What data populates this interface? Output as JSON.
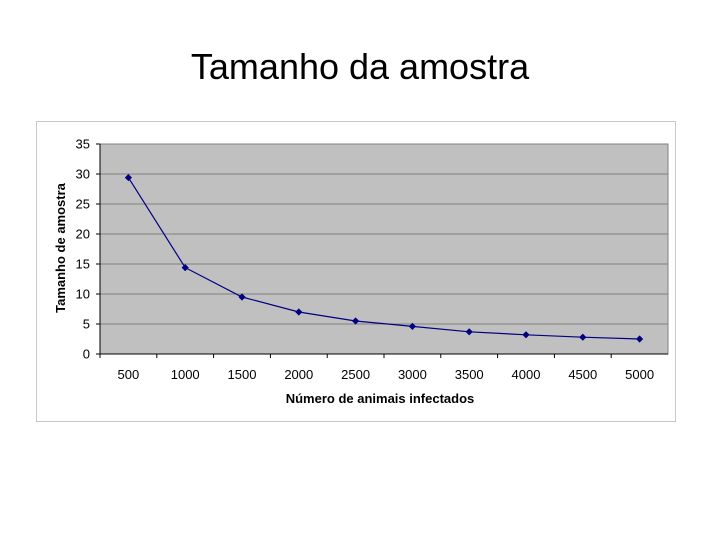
{
  "page": {
    "title": "Tamanho da amostra"
  },
  "colors": {
    "plot_background": "#c0c0c0",
    "gridline": "#808080",
    "series_line": "#000080",
    "marker": "#000080"
  },
  "chart_data": {
    "type": "line",
    "title": "",
    "xlabel": "Número de animais infectados",
    "ylabel": "Tamanho de amostra",
    "categories": [
      "500",
      "1000",
      "1500",
      "2000",
      "2500",
      "3000",
      "3500",
      "4000",
      "4500",
      "5000"
    ],
    "series": [
      {
        "values": [
          29.4,
          14.4,
          9.5,
          7.0,
          5.5,
          4.6,
          3.7,
          3.2,
          2.8,
          2.5
        ],
        "marker": "diamond"
      }
    ],
    "ylim": [
      0,
      35
    ],
    "yticks": [
      0,
      5,
      10,
      15,
      20,
      25,
      30,
      35
    ],
    "grid": true,
    "legend": "none"
  }
}
